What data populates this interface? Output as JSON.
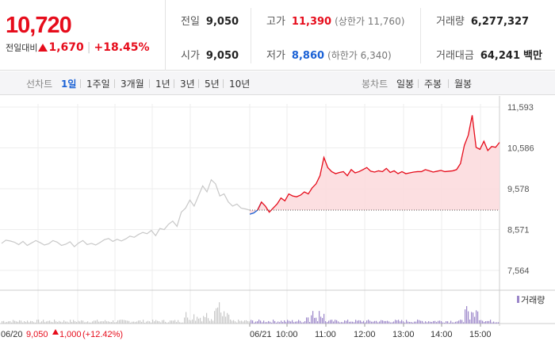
{
  "summary": {
    "price": "10,720",
    "change_label": "전일대비",
    "change": "1,670",
    "change_rate": "+18.45%"
  },
  "stats": {
    "prev_close_label": "전일",
    "prev_close": "9,050",
    "high_label": "고가",
    "high": "11,390",
    "upper_limit": "(상한가 11,760)",
    "volume_label": "거래량",
    "volume": "6,277,327",
    "open_label": "시가",
    "open": "9,050",
    "low_label": "저가",
    "low": "8,860",
    "lower_limit": "(하한가 6,340)",
    "amount_label": "거래대금",
    "amount": "64,241",
    "amount_unit": "백만"
  },
  "tabs": {
    "line_label": "선차트",
    "line_tabs": [
      "1일",
      "1주일",
      "3개월",
      "1년",
      "3년",
      "5년",
      "10년"
    ],
    "candle_label": "봉차트",
    "candle_tabs": [
      "일봉",
      "주봉",
      "월봉"
    ]
  },
  "chart_data": {
    "type": "line",
    "y_ticks": [
      "11,593",
      "10,586",
      "9,578",
      "8,571",
      "7,564"
    ],
    "ylim": [
      7564,
      11593
    ],
    "reference_price": 9050,
    "x_ticks": [
      "06/21",
      "10:00",
      "11:00",
      "12:00",
      "13:00",
      "14:00",
      "15:00"
    ],
    "prev_day_label": "06/20",
    "prev_day_close": "9,050",
    "prev_day_change": "1,000",
    "prev_day_rate": "(+12.42%)",
    "volume_legend": "거래량",
    "prev_series": [
      8230,
      8310,
      8290,
      8260,
      8200,
      8280,
      8180,
      8240,
      8300,
      8250,
      8190,
      8220,
      8300,
      8260,
      8180,
      8210,
      8270,
      8150,
      8240,
      8300,
      8200,
      8230,
      8190,
      8250,
      8320,
      8350,
      8280,
      8330,
      8290,
      8340,
      8410,
      8380,
      8450,
      8500,
      8470,
      8550,
      8420,
      8600,
      8570,
      8700,
      8780,
      8650,
      9000,
      9100,
      9300,
      9150,
      9400,
      9650,
      9500,
      9800,
      9700,
      9400,
      9450,
      9250,
      9150,
      9200,
      9100,
      9080,
      9050
    ],
    "today_series": [
      8950,
      8980,
      9050,
      9250,
      9150,
      9000,
      9100,
      9200,
      9350,
      9280,
      9450,
      9400,
      9380,
      9420,
      9500,
      9450,
      9600,
      9700,
      9900,
      10350,
      10100,
      10000,
      9950,
      9980,
      10000,
      9900,
      10050,
      9970,
      10000,
      10050,
      10100,
      10010,
      9990,
      10020,
      10000,
      10080,
      9980,
      10020,
      9950,
      10000,
      9950,
      9970,
      9990,
      10000,
      10000,
      10050,
      10020,
      9990,
      10010,
      10030,
      10000,
      10010,
      10020,
      10050,
      10200,
      10650,
      10900,
      11390,
      10600,
      10550,
      10750,
      10520,
      10620,
      10600,
      10720
    ]
  }
}
